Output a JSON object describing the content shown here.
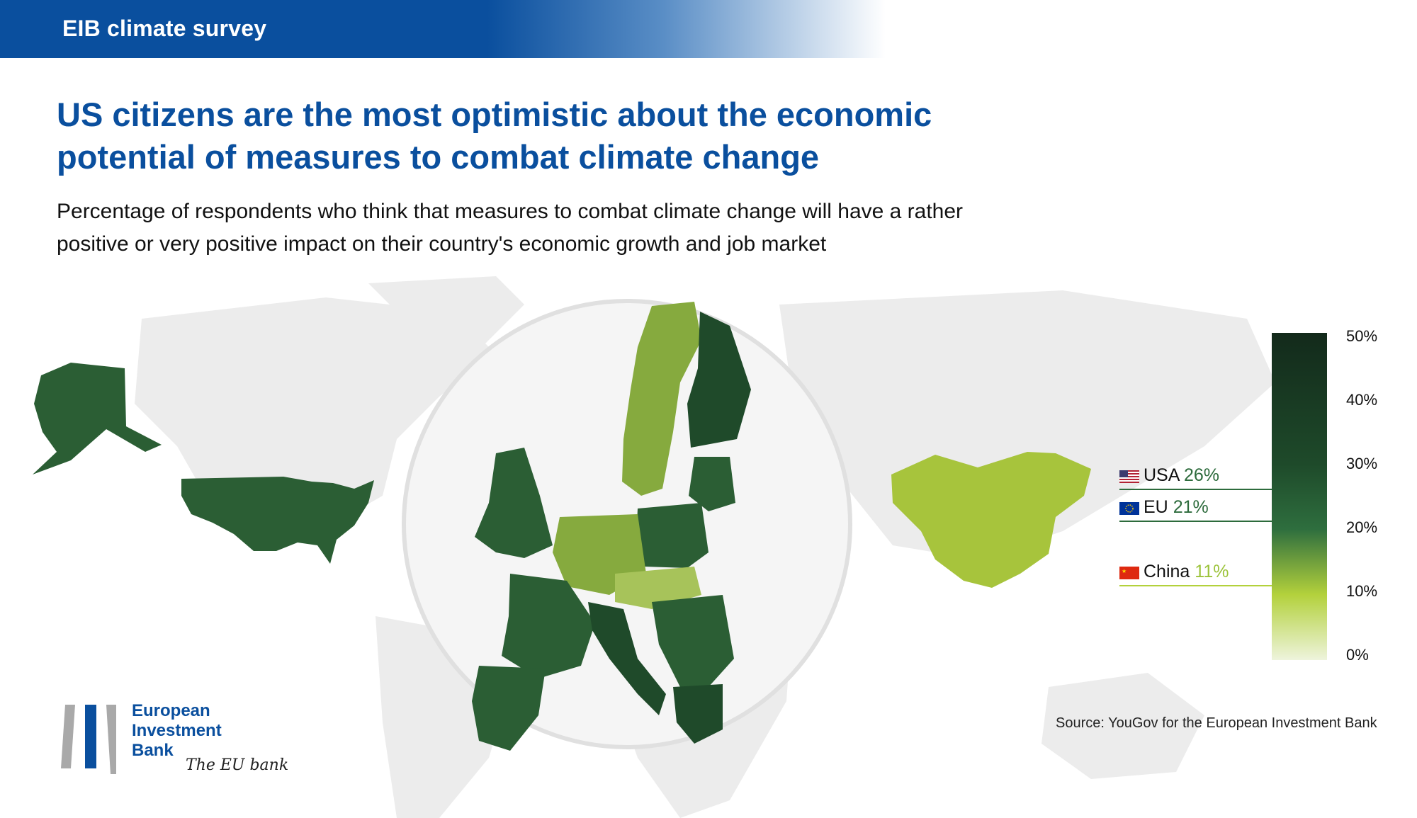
{
  "header": {
    "bar_title": "EIB climate survey"
  },
  "headline": {
    "line1": "US citizens are the most optimistic about the economic",
    "line2": "potential of measures to combat climate change"
  },
  "subtitle": {
    "line1": "Percentage of respondents who think that measures to combat climate change will have a rather",
    "line2": "positive or very positive impact on their country's economic growth and job market"
  },
  "highlights": [
    {
      "region": "USA",
      "value": "26%",
      "value_color": "#2d6b3c"
    },
    {
      "region": "EU",
      "value": "21%",
      "value_color": "#2d6b3c"
    },
    {
      "region": "China",
      "value": "11%",
      "value_color": "#9cc33a"
    }
  ],
  "chart_data": {
    "type": "choropleth",
    "color_scale": {
      "ticks": [
        "0%",
        "10%",
        "20%",
        "30%",
        "40%",
        "50%"
      ],
      "colors": [
        "#eef4dc",
        "#b3d13c",
        "#2e6e3e",
        "#1e4a2a",
        "#132a1b"
      ]
    },
    "regions": [
      {
        "name": "USA",
        "value": 26
      },
      {
        "name": "EU",
        "value": 21
      },
      {
        "name": "China",
        "value": 11
      }
    ]
  },
  "source": "Source: YouGov for the European Investment Bank",
  "logo": {
    "line1": "European",
    "line2": "Investment",
    "line3": "Bank",
    "tagline": "The EU bank"
  }
}
